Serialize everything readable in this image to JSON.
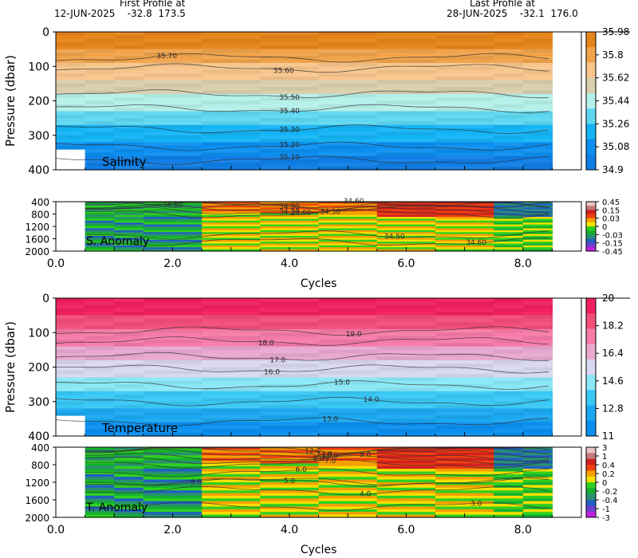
{
  "header": {
    "first_title": "First Profile at",
    "first_detail": "12-JUN-2025    -32.8  173.5",
    "last_title": "Last Profile at",
    "last_detail": "28-JUN-2025    -32.1  176.0"
  },
  "chart_data": [
    {
      "type": "heatmap",
      "id": "salinity",
      "label": "Salinity",
      "ylabel": "Pressure (dbar)",
      "ylim": [
        0,
        400
      ],
      "yticks": [
        "0",
        "100",
        "200",
        "300",
        "400"
      ],
      "xlim": [
        0,
        9
      ],
      "colorbar_ticks": [
        "35.98",
        "35.8",
        "35.62",
        "35.44",
        "35.26",
        "35.08",
        "34.9"
      ],
      "colorbar_colors": [
        "#e6841a",
        "#f0a34b",
        "#f8c58d",
        "#d9cfad",
        "#b5f0ea",
        "#5ed8f0",
        "#14b4f5",
        "#0c8ff0",
        "#0f7ee6"
      ],
      "contours": [
        {
          "label": "35.70",
          "x": 1.9,
          "depth": 75
        },
        {
          "label": "35.60",
          "x": 3.9,
          "depth": 105
        },
        {
          "label": "35.50",
          "x": 4.0,
          "depth": 180
        },
        {
          "label": "35.40",
          "x": 4.0,
          "depth": 222
        },
        {
          "label": "35.30",
          "x": 4.0,
          "depth": 282
        },
        {
          "label": "35.20",
          "x": 4.0,
          "depth": 332
        },
        {
          "label": "35.10",
          "x": 4.0,
          "depth": 372
        }
      ]
    },
    {
      "type": "heatmap",
      "id": "s_anomaly",
      "label": "S. Anomaly",
      "ylim": [
        400,
        2000
      ],
      "yticks": [
        "400",
        "800",
        "1200",
        "1600",
        "2000"
      ],
      "xlabel": "Cycles",
      "xticks": [
        "0.0",
        "2.0",
        "4.0",
        "6.0",
        "8.0"
      ],
      "xlim": [
        0,
        9
      ],
      "colorbar_ticks": [
        "0.45",
        "0.15",
        "0.03",
        "0",
        "-0.03",
        "-0.15",
        "-0.45"
      ],
      "colorbar_colors": [
        "#e8c4c4",
        "#c47878",
        "#d02020",
        "#f04010",
        "#f5a000",
        "#f5e000",
        "#30d020",
        "#14b030",
        "#2a8f70",
        "#2060c0",
        "#6a40d0",
        "#c020e0"
      ],
      "contours": [
        {
          "label": "34.80",
          "x": 2.0,
          "depth": 560
        },
        {
          "label": "34.90",
          "x": 4.0,
          "depth": 470
        },
        {
          "label": "34.20",
          "x": 4.0,
          "depth": 620
        },
        {
          "label": "34.60",
          "x": 4.2,
          "depth": 700
        },
        {
          "label": "34.50",
          "x": 4.7,
          "depth": 790
        },
        {
          "label": "34.60",
          "x": 5.1,
          "depth": 470
        },
        {
          "label": "34.50",
          "x": 5.8,
          "depth": 1470
        },
        {
          "label": "34.60",
          "x": 7.2,
          "depth": 1700
        }
      ]
    },
    {
      "type": "heatmap",
      "id": "temperature",
      "label": "Temperature",
      "ylabel": "Pressure (dbar)",
      "ylim": [
        0,
        400
      ],
      "yticks": [
        "0",
        "100",
        "200",
        "300",
        "400"
      ],
      "xlim": [
        0,
        9
      ],
      "colorbar_ticks": [
        "20",
        "18.2",
        "16.4",
        "14.6",
        "12.8",
        "11"
      ],
      "colorbar_colors": [
        "#f02060",
        "#f34d7a",
        "#f57aa8",
        "#e8a8d0",
        "#d8d8f0",
        "#8ae8f6",
        "#38c8f6",
        "#1aa8f0",
        "#0a8ff0"
      ],
      "contours": [
        {
          "label": "19.0",
          "x": 5.1,
          "depth": 95
        },
        {
          "label": "18.0",
          "x": 3.6,
          "depth": 125
        },
        {
          "label": "17.0",
          "x": 3.8,
          "depth": 170
        },
        {
          "label": "16.0",
          "x": 3.7,
          "depth": 205
        },
        {
          "label": "15.0",
          "x": 4.9,
          "depth": 252
        },
        {
          "label": "14.0",
          "x": 5.4,
          "depth": 300
        },
        {
          "label": "13.0",
          "x": 4.7,
          "depth": 358
        }
      ]
    },
    {
      "type": "heatmap",
      "id": "t_anomaly",
      "label": "T. Anomaly",
      "ylim": [
        400,
        2000
      ],
      "yticks": [
        "400",
        "800",
        "1200",
        "1600",
        "2000"
      ],
      "xlabel": "Cycles",
      "xticks": [
        "0.0",
        "2.0",
        "4.0",
        "6.0",
        "8.0"
      ],
      "xlim": [
        0,
        9
      ],
      "colorbar_ticks": [
        "3",
        "1",
        "0.4",
        "0.2",
        "0",
        "-0.2",
        "-0.4",
        "-1",
        "-3"
      ],
      "colorbar_colors": [
        "#e8c4c4",
        "#c47878",
        "#d02020",
        "#f04010",
        "#f5a000",
        "#f5e000",
        "#30d020",
        "#14b030",
        "#2a8f70",
        "#2060c0",
        "#6a40d0",
        "#c020e0"
      ],
      "contours": [
        {
          "label": "12.0",
          "x": 4.4,
          "depth": 430
        },
        {
          "label": "11.0",
          "x": 4.6,
          "depth": 480
        },
        {
          "label": "10.0",
          "x": 4.7,
          "depth": 540
        },
        {
          "label": "9.0",
          "x": 5.3,
          "depth": 620
        },
        {
          "label": "8.0",
          "x": 4.5,
          "depth": 690
        },
        {
          "label": "7.0",
          "x": 4.7,
          "depth": 780
        },
        {
          "label": "6.0",
          "x": 4.2,
          "depth": 980
        },
        {
          "label": "5.0",
          "x": 2.4,
          "depth": 1180
        },
        {
          "label": "5.0",
          "x": 4.0,
          "depth": 1200
        },
        {
          "label": "4.0",
          "x": 5.3,
          "depth": 1390
        },
        {
          "label": "3.0",
          "x": 7.2,
          "depth": 1750
        }
      ]
    }
  ]
}
